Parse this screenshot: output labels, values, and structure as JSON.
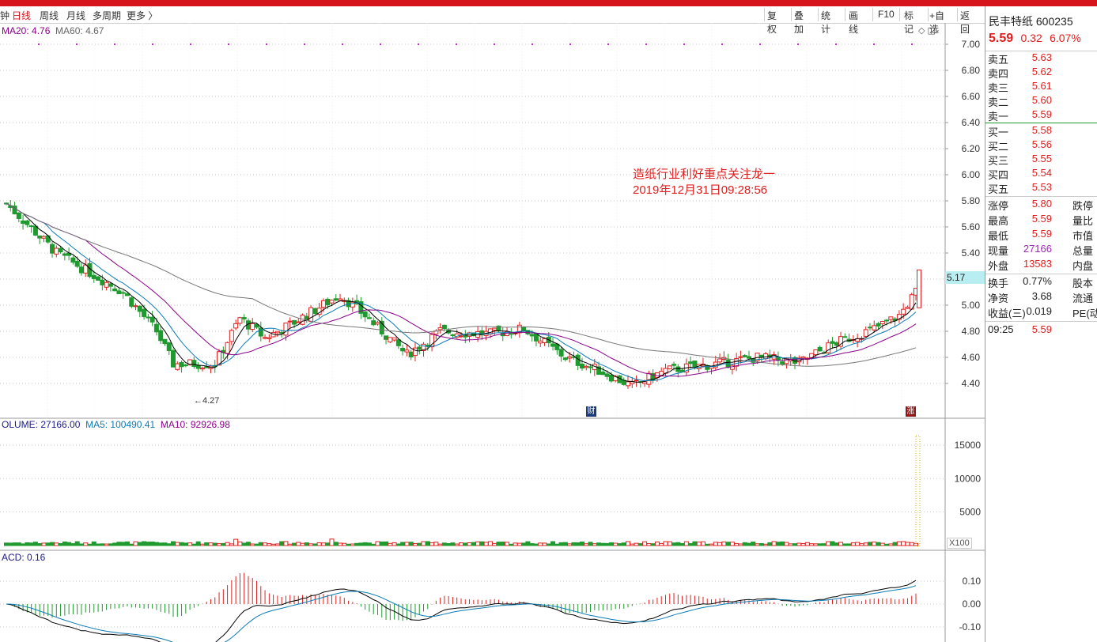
{
  "menu": {
    "tabs": [
      "钟",
      "日线",
      "周线",
      "月线",
      "多周期",
      "更多 〉"
    ],
    "active_index": 1
  },
  "toolbar": [
    "复权",
    "叠加",
    "统计",
    "画线",
    "F10",
    "标记",
    "+自选",
    "返回"
  ],
  "main_chart": {
    "legend": {
      "ma20": "MA20: 4.76",
      "ma60": "MA60: 4.67"
    },
    "y_ticks": [
      "7.00",
      "6.80",
      "6.60",
      "6.40",
      "6.20",
      "6.00",
      "5.80",
      "5.60",
      "5.40",
      "5.20",
      "5.00",
      "4.80",
      "4.60",
      "4.40"
    ],
    "current_price_tag": "5.17",
    "low_label": "←4.27",
    "annotation": {
      "line1": "造纸行业利好重点关注龙一",
      "line2": "2019年12月31日09:28:56"
    },
    "markers": [
      "财",
      "涨"
    ]
  },
  "volume_chart": {
    "legend": {
      "vol": "OLUME: 27166.00",
      "ma5": "MA5: 100490.41",
      "ma10": "MA10: 92926.98"
    },
    "y_ticks": [
      "15000",
      "10000",
      "5000"
    ],
    "unit": "X100"
  },
  "macd_chart": {
    "legend": "ACD: 0.16",
    "y_ticks": [
      "0.10",
      "0.00",
      "-0.10"
    ]
  },
  "panel": {
    "stock_name": "民丰特纸",
    "code": "600235",
    "price": "5.59",
    "change": "0.32",
    "change_pct": "6.07%",
    "asks": [
      {
        "label": "卖五",
        "price": "5.63"
      },
      {
        "label": "卖四",
        "price": "5.62"
      },
      {
        "label": "卖三",
        "price": "5.61"
      },
      {
        "label": "卖二",
        "price": "5.60"
      },
      {
        "label": "卖一",
        "price": "5.59"
      }
    ],
    "bids": [
      {
        "label": "买一",
        "price": "5.58"
      },
      {
        "label": "买二",
        "price": "5.56"
      },
      {
        "label": "买三",
        "price": "5.55"
      },
      {
        "label": "买四",
        "price": "5.54"
      },
      {
        "label": "买五",
        "price": "5.53"
      }
    ],
    "stats": [
      {
        "k": "涨停",
        "v": "5.80",
        "k2": "跌停"
      },
      {
        "k": "最高",
        "v": "5.59",
        "k2": "量比"
      },
      {
        "k": "最低",
        "v": "5.59",
        "k2": "市值"
      },
      {
        "k": "现量",
        "v": "27166",
        "k2": "总量"
      },
      {
        "k": "外盘",
        "v": "13583",
        "k2": "内盘"
      }
    ],
    "stats2": [
      {
        "k": "换手",
        "v": "0.77%",
        "k2": "股本"
      },
      {
        "k": "净资",
        "v": "3.68",
        "k2": "流通"
      },
      {
        "k": "收益(三)",
        "v": "0.019",
        "k2": "PE(动"
      }
    ],
    "tick": {
      "time": "09:25",
      "price": "5.59"
    }
  },
  "colors": {
    "up": "#e02020",
    "down": "#1f9a2e",
    "ma5": "#000000",
    "ma10": "#0a7bb5",
    "ma20": "#8b008b",
    "ma60": "#777777"
  }
}
